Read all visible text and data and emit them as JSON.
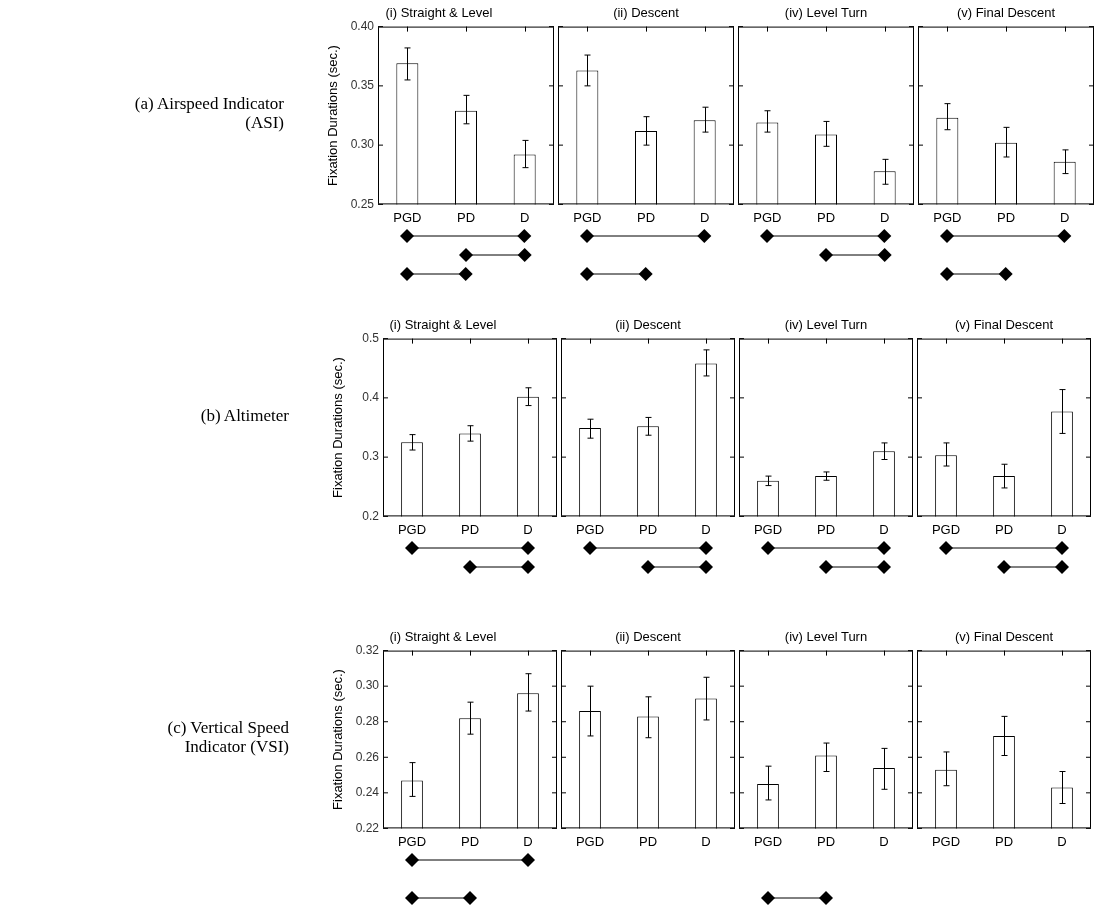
{
  "chart_data": [
    {
      "type": "bar",
      "title": "(i) Straight & Level",
      "ylabel": "Fixation Durations (sec.)",
      "annotations": [
        "(a) Airspeed Indicator (ASI)"
      ],
      "categories": [
        "PGD",
        "PD",
        "D"
      ],
      "values": [
        0.369,
        0.329,
        0.292
      ],
      "errors": [
        [
          0.355,
          0.382
        ],
        [
          0.318,
          0.342
        ],
        [
          0.281,
          0.304
        ]
      ],
      "color": "#ffffff",
      "ylim": [
        0.25,
        0.4
      ],
      "yticks": [
        0.25,
        {
          "value": 0.3,
          "label": "0.30"
        },
        0.35,
        {
          "value": 0.4,
          "label": "0.40"
        }
      ]
    },
    {
      "type": "bar",
      "title": "(ii) Descent",
      "categories": [
        "PGD",
        "PD",
        "D"
      ],
      "values": [
        0.363,
        0.312,
        0.321
      ],
      "errors": [
        [
          0.35,
          0.376
        ],
        [
          0.3,
          0.324
        ],
        [
          0.311,
          0.332
        ]
      ],
      "color": "#ffffff",
      "ylim": [
        0.25,
        0.4
      ],
      "yticks": [
        {
          "value": 0.25,
          "label": null
        },
        {
          "value": 0.3,
          "label": null
        },
        {
          "value": 0.35,
          "label": null
        },
        {
          "value": 0.4,
          "label": null
        }
      ],
      "tick_labels": "x"
    },
    {
      "type": "bar",
      "title": "(iv) Level Turn",
      "categories": [
        "PGD",
        "PD",
        "D"
      ],
      "values": [
        0.319,
        0.309,
        0.278
      ],
      "errors": [
        [
          0.311,
          0.329
        ],
        [
          0.299,
          0.32
        ],
        [
          0.267,
          0.288
        ]
      ],
      "color": "#ffffff",
      "ylim": [
        0.25,
        0.4
      ],
      "yticks": [
        {
          "value": 0.25,
          "label": null
        },
        {
          "value": 0.3,
          "label": null
        },
        {
          "value": 0.35,
          "label": null
        },
        {
          "value": 0.4,
          "label": null
        }
      ],
      "tick_labels": "x"
    },
    {
      "type": "bar",
      "title": "(v) Final Descent",
      "categories": [
        "PGD",
        "PD",
        "D"
      ],
      "values": [
        0.323,
        0.302,
        0.286
      ],
      "errors": [
        [
          0.313,
          0.335
        ],
        [
          0.29,
          0.315
        ],
        [
          0.276,
          0.296
        ]
      ],
      "color": "#ffffff",
      "ylim": [
        0.25,
        0.4
      ],
      "yticks": [
        {
          "value": 0.25,
          "label": null
        },
        {
          "value": 0.3,
          "label": null
        },
        {
          "value": 0.35,
          "label": null
        },
        {
          "value": 0.4,
          "label": null
        }
      ],
      "tick_labels": "x"
    },
    {
      "type": "bar",
      "title": "(i) Straight & Level",
      "ylabel": "Fixation Durations (sec.)",
      "annotations": [
        "(b) Altimeter"
      ],
      "categories": [
        "PGD",
        "PD",
        "D"
      ],
      "values": [
        0.325,
        0.34,
        0.402
      ],
      "errors": [
        [
          0.312,
          0.338
        ],
        [
          0.327,
          0.353
        ],
        [
          0.387,
          0.417
        ]
      ],
      "color": "#ffffff",
      "ylim": [
        0.2,
        0.5
      ],
      "yticks": [
        0.2,
        0.3,
        0.4,
        0.5
      ]
    },
    {
      "type": "bar",
      "title": "(ii) Descent",
      "categories": [
        "PGD",
        "PD",
        "D"
      ],
      "values": [
        0.349,
        0.352,
        0.458
      ],
      "errors": [
        [
          0.332,
          0.364
        ],
        [
          0.337,
          0.367
        ],
        [
          0.437,
          0.481
        ]
      ],
      "color": "#ffffff",
      "ylim": [
        0.2,
        0.5
      ],
      "yticks": [
        {
          "value": 0.2,
          "label": null
        },
        {
          "value": 0.3,
          "label": null
        },
        {
          "value": 0.4,
          "label": null
        },
        {
          "value": 0.5,
          "label": null
        }
      ],
      "tick_labels": "x"
    },
    {
      "type": "bar",
      "title": "(iv) Level Turn",
      "categories": [
        "PGD",
        "PD",
        "D"
      ],
      "values": [
        0.26,
        0.268,
        0.31
      ],
      "errors": [
        [
          0.252,
          0.268
        ],
        [
          0.261,
          0.275
        ],
        [
          0.296,
          0.324
        ]
      ],
      "color": "#ffffff",
      "ylim": [
        0.2,
        0.5
      ],
      "yticks": [
        {
          "value": 0.2,
          "label": null
        },
        {
          "value": 0.3,
          "label": null
        },
        {
          "value": 0.4,
          "label": null
        },
        {
          "value": 0.5,
          "label": null
        }
      ],
      "tick_labels": "x"
    },
    {
      "type": "bar",
      "title": "(v) Final Descent",
      "categories": [
        "PGD",
        "PD",
        "D"
      ],
      "values": [
        0.303,
        0.268,
        0.377
      ],
      "errors": [
        [
          0.285,
          0.324
        ],
        [
          0.248,
          0.288
        ],
        [
          0.34,
          0.414
        ]
      ],
      "color": "#ffffff",
      "ylim": [
        0.2,
        0.5
      ],
      "yticks": [
        {
          "value": 0.2,
          "label": null
        },
        {
          "value": 0.3,
          "label": null
        },
        {
          "value": 0.4,
          "label": null
        },
        {
          "value": 0.5,
          "label": null
        }
      ],
      "tick_labels": "x"
    },
    {
      "type": "bar",
      "title": "(i) Straight & Level",
      "ylabel": "Fixation Durations (sec.)",
      "annotations": [
        "(c) Vertical Speed Indicator (VSI)"
      ],
      "categories": [
        "PGD",
        "PD",
        "D"
      ],
      "values": [
        0.247,
        0.282,
        0.296
      ],
      "errors": [
        [
          0.238,
          0.257
        ],
        [
          0.273,
          0.291
        ],
        [
          0.286,
          0.307
        ]
      ],
      "color": "#ffffff",
      "ylim": [
        0.22,
        0.32
      ],
      "yticks": [
        0.22,
        0.24,
        0.26,
        0.28,
        {
          "value": 0.3,
          "label": "0.30"
        },
        0.32
      ]
    },
    {
      "type": "bar",
      "title": "(ii) Descent",
      "categories": [
        "PGD",
        "PD",
        "D"
      ],
      "values": [
        0.286,
        0.283,
        0.293
      ],
      "errors": [
        [
          0.272,
          0.3
        ],
        [
          0.271,
          0.294
        ],
        [
          0.281,
          0.305
        ]
      ],
      "color": "#ffffff",
      "ylim": [
        0.22,
        0.32
      ],
      "yticks": [
        {
          "value": 0.22,
          "label": null
        },
        {
          "value": 0.24,
          "label": null
        },
        {
          "value": 0.26,
          "label": null
        },
        {
          "value": 0.28,
          "label": null
        },
        {
          "value": 0.3,
          "label": null
        },
        {
          "value": 0.32,
          "label": null
        }
      ],
      "tick_labels": "x"
    },
    {
      "type": "bar",
      "title": "(iv) Level Turn",
      "categories": [
        "PGD",
        "PD",
        "D"
      ],
      "values": [
        0.245,
        0.261,
        0.254
      ],
      "errors": [
        [
          0.236,
          0.255
        ],
        [
          0.252,
          0.268
        ],
        [
          0.242,
          0.265
        ]
      ],
      "color": "#ffffff",
      "ylim": [
        0.22,
        0.32
      ],
      "yticks": [
        {
          "value": 0.22,
          "label": null
        },
        {
          "value": 0.24,
          "label": null
        },
        {
          "value": 0.26,
          "label": null
        },
        {
          "value": 0.28,
          "label": null
        },
        {
          "value": 0.3,
          "label": null
        },
        {
          "value": 0.32,
          "label": null
        }
      ],
      "tick_labels": "x"
    },
    {
      "type": "bar",
      "title": "(v) Final Descent",
      "categories": [
        "PGD",
        "PD",
        "D"
      ],
      "values": [
        0.253,
        0.272,
        0.243
      ],
      "errors": [
        [
          0.244,
          0.263
        ],
        [
          0.261,
          0.283
        ],
        [
          0.234,
          0.252
        ]
      ],
      "color": "#ffffff",
      "ylim": [
        0.22,
        0.32
      ],
      "yticks": [
        {
          "value": 0.22,
          "label": null
        },
        {
          "value": 0.24,
          "label": null
        },
        {
          "value": 0.26,
          "label": null
        },
        {
          "value": 0.28,
          "label": null
        },
        {
          "value": 0.3,
          "label": null
        },
        {
          "value": 0.32,
          "label": null
        }
      ],
      "tick_labels": "x"
    }
  ]
}
